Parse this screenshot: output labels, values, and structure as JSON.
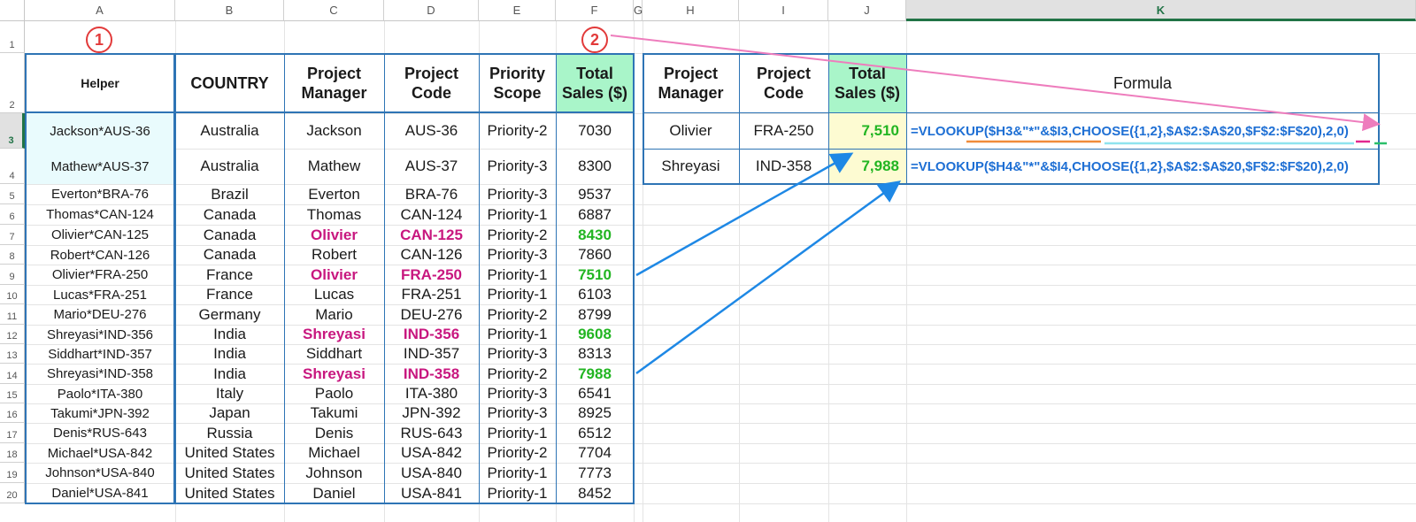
{
  "columns": [
    "A",
    "B",
    "C",
    "D",
    "E",
    "F",
    "G",
    "H",
    "I",
    "J",
    "K"
  ],
  "rows": [
    "1",
    "2",
    "3",
    "4",
    "5",
    "6",
    "7",
    "8",
    "9",
    "10",
    "11",
    "12",
    "13",
    "14",
    "15",
    "16",
    "17",
    "18",
    "19",
    "20"
  ],
  "badges": {
    "one": "1",
    "two": "2"
  },
  "source_table": {
    "headers": {
      "helper": "Helper",
      "country": "COUNTRY",
      "manager": "Project Manager",
      "code": "Project Code",
      "scope": "Priority Scope",
      "sales": "Total Sales ($)"
    },
    "rows": [
      {
        "helper": "Jackson*AUS-36",
        "country": "Australia",
        "manager": "Jackson",
        "code": "AUS-36",
        "scope": "Priority-2",
        "sales": "7030"
      },
      {
        "helper": "Mathew*AUS-37",
        "country": "Australia",
        "manager": "Mathew",
        "code": "AUS-37",
        "scope": "Priority-3",
        "sales": "8300"
      },
      {
        "helper": "Everton*BRA-76",
        "country": "Brazil",
        "manager": "Everton",
        "code": "BRA-76",
        "scope": "Priority-3",
        "sales": "9537"
      },
      {
        "helper": "Thomas*CAN-124",
        "country": "Canada",
        "manager": "Thomas",
        "code": "CAN-124",
        "scope": "Priority-1",
        "sales": "6887"
      },
      {
        "helper": "Olivier*CAN-125",
        "country": "Canada",
        "manager": "Olivier",
        "code": "CAN-125",
        "scope": "Priority-2",
        "sales": "8430"
      },
      {
        "helper": "Robert*CAN-126",
        "country": "Canada",
        "manager": "Robert",
        "code": "CAN-126",
        "scope": "Priority-3",
        "sales": "7860"
      },
      {
        "helper": "Olivier*FRA-250",
        "country": "France",
        "manager": "Olivier",
        "code": "FRA-250",
        "scope": "Priority-1",
        "sales": "7510"
      },
      {
        "helper": "Lucas*FRA-251",
        "country": "France",
        "manager": "Lucas",
        "code": "FRA-251",
        "scope": "Priority-1",
        "sales": "6103"
      },
      {
        "helper": "Mario*DEU-276",
        "country": "Germany",
        "manager": "Mario",
        "code": "DEU-276",
        "scope": "Priority-2",
        "sales": "8799"
      },
      {
        "helper": "Shreyasi*IND-356",
        "country": "India",
        "manager": "Shreyasi",
        "code": "IND-356",
        "scope": "Priority-1",
        "sales": "9608"
      },
      {
        "helper": "Siddhart*IND-357",
        "country": "India",
        "manager": "Siddhart",
        "code": "IND-357",
        "scope": "Priority-3",
        "sales": "8313"
      },
      {
        "helper": "Shreyasi*IND-358",
        "country": "India",
        "manager": "Shreyasi",
        "code": "IND-358",
        "scope": "Priority-2",
        "sales": "7988"
      },
      {
        "helper": "Paolo*ITA-380",
        "country": "Italy",
        "manager": "Paolo",
        "code": "ITA-380",
        "scope": "Priority-3",
        "sales": "6541"
      },
      {
        "helper": "Takumi*JPN-392",
        "country": "Japan",
        "manager": "Takumi",
        "code": "JPN-392",
        "scope": "Priority-3",
        "sales": "8925"
      },
      {
        "helper": "Denis*RUS-643",
        "country": "Russia",
        "manager": "Denis",
        "code": "RUS-643",
        "scope": "Priority-1",
        "sales": "6512"
      },
      {
        "helper": "Michael*USA-842",
        "country": "United States",
        "manager": "Michael",
        "code": "USA-842",
        "scope": "Priority-2",
        "sales": "7704"
      },
      {
        "helper": "Johnson*USA-840",
        "country": "United States",
        "manager": "Johnson",
        "code": "USA-840",
        "scope": "Priority-1",
        "sales": "7773"
      },
      {
        "helper": "Daniel*USA-841",
        "country": "United States",
        "manager": "Daniel",
        "code": "USA-841",
        "scope": "Priority-1",
        "sales": "8452"
      }
    ],
    "highlighted_rows": [
      4,
      6,
      9,
      11
    ]
  },
  "result_table": {
    "headers": {
      "manager": "Project Manager",
      "code": "Project Code",
      "sales": "Total Sales ($)",
      "formula": "Formula"
    },
    "rows": [
      {
        "manager": "Olivier",
        "code": "FRA-250",
        "sales": "7,510",
        "formula": "=VLOOKUP($H3&\"*\"&$I3,CHOOSE({1,2},$A$2:$A$20,$F$2:$F$20),2,0)"
      },
      {
        "manager": "Shreyasi",
        "code": "IND-358",
        "sales": "7,988",
        "formula": "=VLOOKUP($H4&\"*\"&$I4,CHOOSE({1,2},$A$2:$A$20,$F$2:$F$20),2,0)"
      }
    ]
  },
  "colors": {
    "table_border": "#2e74b5",
    "header_fill_green": "#a9f5c9",
    "result_fill_yellow": "#fdfbd2",
    "highlight_name": "#c8177f",
    "highlight_value": "#22b522",
    "formula_text": "#1e6fd4",
    "arrow_blue": "#1e88e5",
    "arrow_pink": "#ee7dbd",
    "badge_red": "#e23a3a"
  }
}
